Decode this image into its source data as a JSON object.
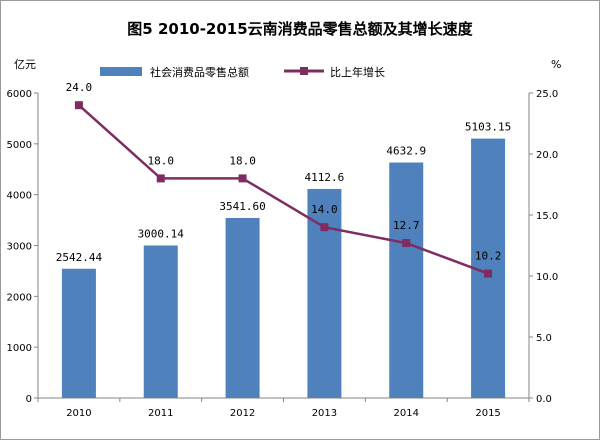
{
  "chart_data": {
    "type": "bar+line",
    "title": "图5  2010-2015云南消费品零售总额及其增长速度",
    "categories": [
      "2010",
      "2011",
      "2012",
      "2013",
      "2014",
      "2015"
    ],
    "left_axis": {
      "unit": "亿元",
      "ylim": [
        0,
        6000
      ],
      "ticks": [
        "0",
        "1000",
        "2000",
        "3000",
        "4000",
        "5000",
        "6000"
      ]
    },
    "right_axis": {
      "unit": "%",
      "ylim": [
        0,
        25
      ],
      "ticks": [
        "0.0",
        "5.0",
        "10.0",
        "15.0",
        "20.0",
        "25.0"
      ]
    },
    "series": [
      {
        "name": "社会消费品零售总额",
        "type": "bar",
        "axis": "left",
        "color": "#4f81bd",
        "values": [
          2542.44,
          3000.14,
          3541.6,
          4112.6,
          4632.9,
          5103.15
        ],
        "labels": [
          "2542.44",
          "3000.14",
          "3541.60",
          "4112.6",
          "4632.9",
          "5103.15"
        ]
      },
      {
        "name": "比上年增长",
        "type": "line",
        "axis": "right",
        "color": "#7f2c60",
        "values": [
          24.0,
          18.0,
          18.0,
          14.0,
          12.7,
          10.2
        ],
        "labels": [
          "24.0",
          "18.0",
          "18.0",
          "14.0",
          "12.7",
          "10.2"
        ]
      }
    ],
    "legend": "top",
    "grid": false
  }
}
